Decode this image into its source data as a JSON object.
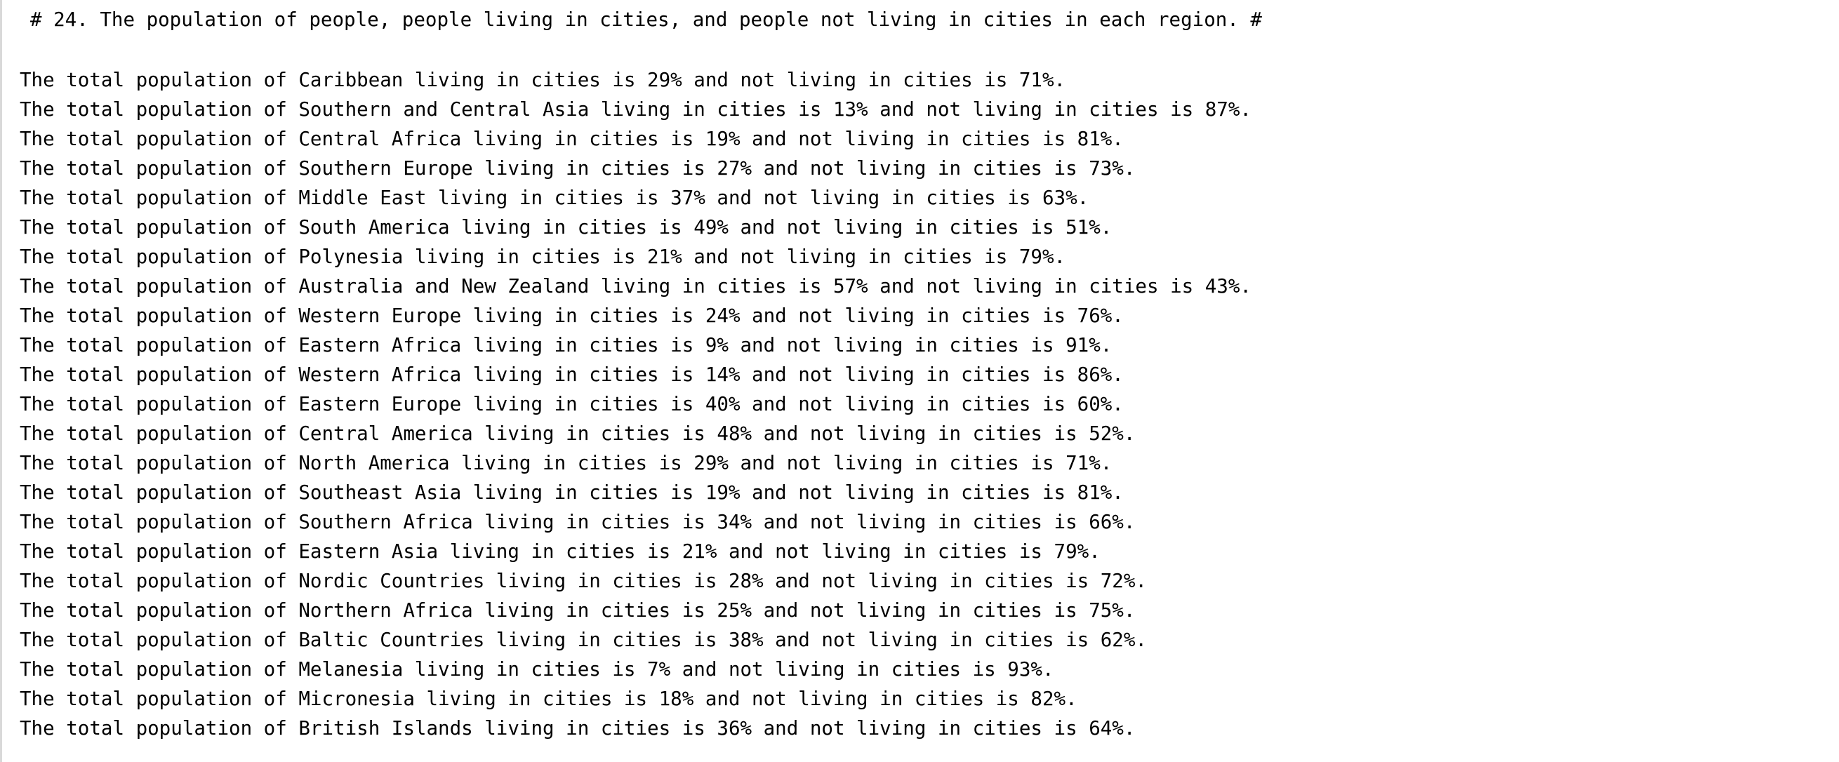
{
  "output": {
    "header": "# 24. The population of people, people living in cities, and people not living in cities in each region. #",
    "lines": [
      "The total population of Caribbean living in cities is 29% and not living in cities is 71%.",
      "The total population of Southern and Central Asia living in cities is 13% and not living in cities is 87%.",
      "The total population of Central Africa living in cities is 19% and not living in cities is 81%.",
      "The total population of Southern Europe living in cities is 27% and not living in cities is 73%.",
      "The total population of Middle East living in cities is 37% and not living in cities is 63%.",
      "The total population of South America living in cities is 49% and not living in cities is 51%.",
      "The total population of Polynesia living in cities is 21% and not living in cities is 79%.",
      "The total population of Australia and New Zealand living in cities is 57% and not living in cities is 43%.",
      "The total population of Western Europe living in cities is 24% and not living in cities is 76%.",
      "The total population of Eastern Africa living in cities is 9% and not living in cities is 91%.",
      "The total population of Western Africa living in cities is 14% and not living in cities is 86%.",
      "The total population of Eastern Europe living in cities is 40% and not living in cities is 60%.",
      "The total population of Central America living in cities is 48% and not living in cities is 52%.",
      "The total population of North America living in cities is 29% and not living in cities is 71%.",
      "The total population of Southeast Asia living in cities is 19% and not living in cities is 81%.",
      "The total population of Southern Africa living in cities is 34% and not living in cities is 66%.",
      "The total population of Eastern Asia living in cities is 21% and not living in cities is 79%.",
      "The total population of Nordic Countries living in cities is 28% and not living in cities is 72%.",
      "The total population of Northern Africa living in cities is 25% and not living in cities is 75%.",
      "The total population of Baltic Countries living in cities is 38% and not living in cities is 62%.",
      "The total population of Melanesia living in cities is 7% and not living in cities is 93%.",
      "The total population of Micronesia living in cities is 18% and not living in cities is 82%.",
      "The total population of British Islands living in cities is 36% and not living in cities is 64%."
    ]
  }
}
